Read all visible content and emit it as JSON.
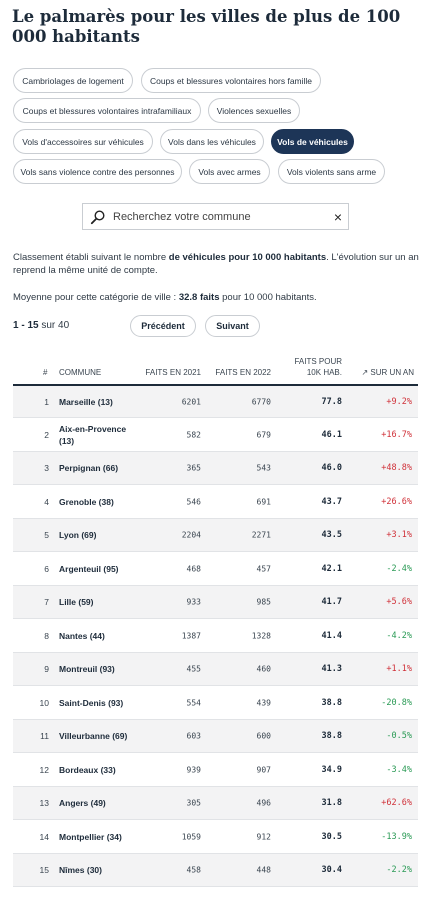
{
  "title": "Le palmarès pour les villes de plus de 100 000 habitants",
  "filters": [
    {
      "label": "Cambriolages de logement",
      "active": false
    },
    {
      "label": "Coups et blessures volontaires hors famille",
      "active": false
    },
    {
      "label": "Coups et blessures volontaires intrafamiliaux",
      "active": false
    },
    {
      "label": "Violences sexuelles",
      "active": false
    },
    {
      "label": "Vols d'accessoires sur véhicules",
      "active": false
    },
    {
      "label": "Vols dans les véhicules",
      "active": false
    },
    {
      "label": "Vols de véhicules",
      "active": true
    },
    {
      "label": "Vols sans violence contre des personnes",
      "active": false
    },
    {
      "label": "Vols avec armes",
      "active": false
    },
    {
      "label": "Vols violents sans arme",
      "active": false
    }
  ],
  "search": {
    "placeholder": "Recherchez votre commune",
    "clear": "×"
  },
  "description": {
    "p1_a": "Classement établi suivant le nombre ",
    "p1_b": "de véhicules pour 10 000 habitants",
    "p1_c": ". L'évolution sur un an reprend la même unité de compte.",
    "p2_a": "Moyenne pour cette catégorie de ville : ",
    "p2_b": "32.8 faits",
    "p2_c": " pour 10 000 habitants."
  },
  "pager": {
    "range": "1 - 15",
    "of": "sur 40",
    "prev": "Précédent",
    "next": "Suivant"
  },
  "table": {
    "headers": {
      "rank": "#",
      "commune": "COMMUNE",
      "y2021": "FAITS EN 2021",
      "y2022": "FAITS EN 2022",
      "rate_1": "FAITS POUR",
      "rate_2": "10K HAB.",
      "evolution": "↗ SUR UN AN"
    },
    "rows": [
      {
        "rank": "1",
        "commune": "Marseille (13)",
        "y2021": "6201",
        "y2022": "6770",
        "rate": "77.8",
        "evo": "+9.2%"
      },
      {
        "rank": "2",
        "commune": "Aix-en-Provence (13)",
        "y2021": "582",
        "y2022": "679",
        "rate": "46.1",
        "evo": "+16.7%"
      },
      {
        "rank": "3",
        "commune": "Perpignan (66)",
        "y2021": "365",
        "y2022": "543",
        "rate": "46.0",
        "evo": "+48.8%"
      },
      {
        "rank": "4",
        "commune": "Grenoble (38)",
        "y2021": "546",
        "y2022": "691",
        "rate": "43.7",
        "evo": "+26.6%"
      },
      {
        "rank": "5",
        "commune": "Lyon (69)",
        "y2021": "2204",
        "y2022": "2271",
        "rate": "43.5",
        "evo": "+3.1%"
      },
      {
        "rank": "6",
        "commune": "Argenteuil (95)",
        "y2021": "468",
        "y2022": "457",
        "rate": "42.1",
        "evo": "-2.4%"
      },
      {
        "rank": "7",
        "commune": "Lille (59)",
        "y2021": "933",
        "y2022": "985",
        "rate": "41.7",
        "evo": "+5.6%"
      },
      {
        "rank": "8",
        "commune": "Nantes (44)",
        "y2021": "1387",
        "y2022": "1328",
        "rate": "41.4",
        "evo": "-4.2%"
      },
      {
        "rank": "9",
        "commune": "Montreuil (93)",
        "y2021": "455",
        "y2022": "460",
        "rate": "41.3",
        "evo": "+1.1%"
      },
      {
        "rank": "10",
        "commune": "Saint-Denis (93)",
        "y2021": "554",
        "y2022": "439",
        "rate": "38.8",
        "evo": "-20.8%"
      },
      {
        "rank": "11",
        "commune": "Villeurbanne (69)",
        "y2021": "603",
        "y2022": "600",
        "rate": "38.8",
        "evo": "-0.5%"
      },
      {
        "rank": "12",
        "commune": "Bordeaux (33)",
        "y2021": "939",
        "y2022": "907",
        "rate": "34.9",
        "evo": "-3.4%"
      },
      {
        "rank": "13",
        "commune": "Angers (49)",
        "y2021": "305",
        "y2022": "496",
        "rate": "31.8",
        "evo": "+62.6%"
      },
      {
        "rank": "14",
        "commune": "Montpellier (34)",
        "y2021": "1059",
        "y2022": "912",
        "rate": "30.5",
        "evo": "-13.9%"
      },
      {
        "rank": "15",
        "commune": "Nîmes (30)",
        "y2021": "458",
        "y2022": "448",
        "rate": "30.4",
        "evo": "-2.2%"
      }
    ]
  },
  "colors": {
    "accent": "#1d3557",
    "increase": "#d0323a",
    "decrease": "#2a9a55",
    "row_shade": "#f3f3f4"
  }
}
